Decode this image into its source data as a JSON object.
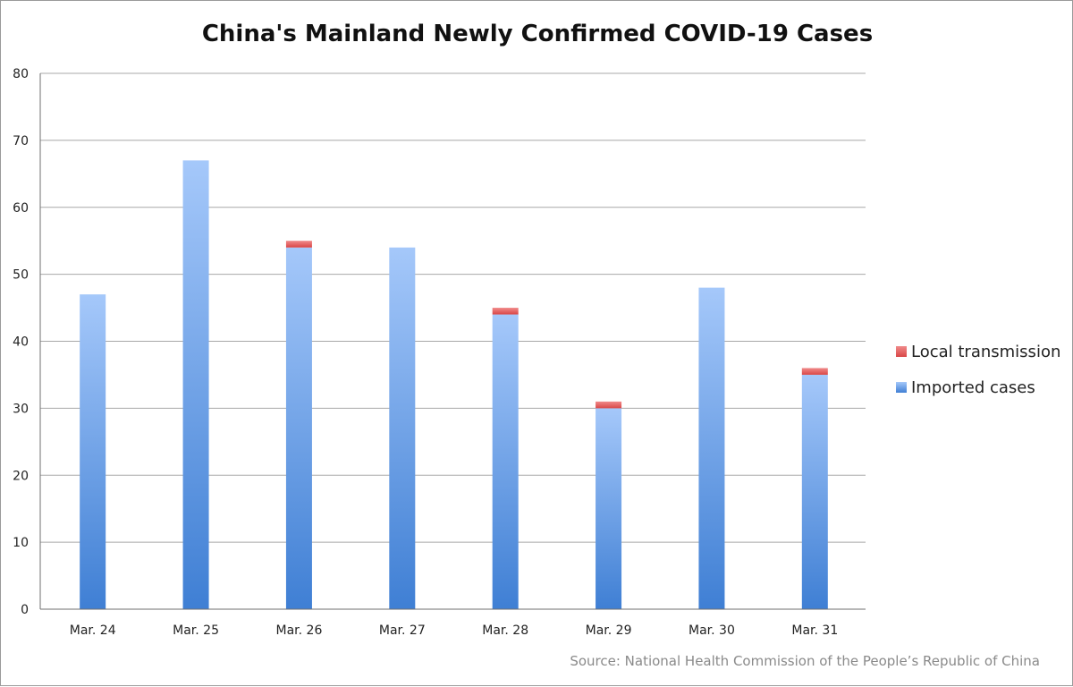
{
  "chart_data": {
    "type": "bar",
    "stacked": true,
    "title": "China's Mainland Newly Confirmed COVID-19 Cases",
    "source": "Source: National Health Commission of the People’s Republic of China",
    "categories": [
      "Mar. 24",
      "Mar. 25",
      "Mar. 26",
      "Mar. 27",
      "Mar. 28",
      "Mar. 29",
      "Mar. 30",
      "Mar. 31"
    ],
    "series": [
      {
        "name": "Imported cases",
        "color": "#4a86d8",
        "values": [
          47,
          67,
          54,
          54,
          44,
          30,
          48,
          35
        ]
      },
      {
        "name": "Local transmission",
        "color": "#e05555",
        "values": [
          0,
          0,
          1,
          0,
          1,
          1,
          0,
          1
        ]
      }
    ],
    "ylim": [
      0,
      80
    ],
    "yticks": [
      0,
      10,
      20,
      30,
      40,
      50,
      60,
      70,
      80
    ],
    "grid": true,
    "legend_position": "right",
    "legend_order": [
      "Local transmission",
      "Imported cases"
    ]
  }
}
